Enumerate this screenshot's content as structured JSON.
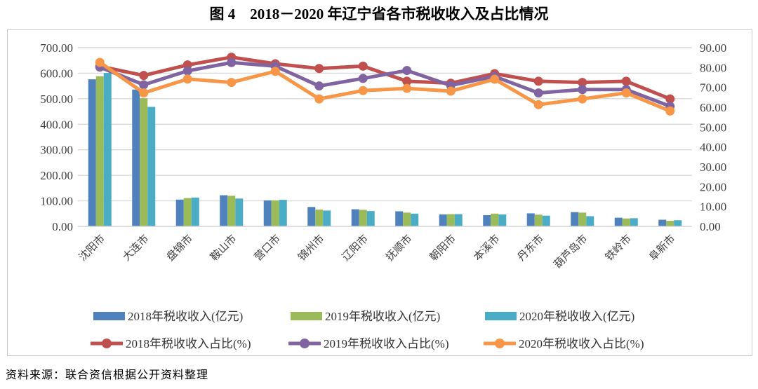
{
  "title": "图 4　2018－2020 年辽宁省各市税收收入及占比情况",
  "source_note": "资料来源：联合资信根据公开资料整理",
  "palette": {
    "bar_2018": "#4F81BD",
    "bar_2019": "#9BBB59",
    "bar_2020": "#4BACC6",
    "line_2018": "#C0504D",
    "line_2019": "#8064A2",
    "line_2020": "#F79646",
    "gridline": "#D9D9D9",
    "axis_text": "#404040",
    "border": "#C9C9C9"
  },
  "chart_data": {
    "type": "bar+line",
    "categories": [
      "沈阳市",
      "大连市",
      "盘锦市",
      "鞍山市",
      "营口市",
      "锦州市",
      "辽阳市",
      "抚顺市",
      "朝阳市",
      "本溪市",
      "丹东市",
      "葫芦岛市",
      "铁岭市",
      "阜新市"
    ],
    "bar_series": [
      {
        "name": "2018年税收收入(亿元)",
        "color": "#4F81BD",
        "values": [
          576,
          536,
          105,
          122,
          102,
          76,
          67,
          59,
          47,
          44,
          51,
          56,
          34,
          26
        ]
      },
      {
        "name": "2019年税收收入(亿元)",
        "color": "#9BBB59",
        "values": [
          588,
          502,
          111,
          120,
          102,
          66,
          65,
          54,
          48,
          50,
          46,
          54,
          31,
          22
        ]
      },
      {
        "name": "2020年税收收入(亿元)",
        "color": "#4BACC6",
        "values": [
          601,
          468,
          113,
          109,
          104,
          62,
          60,
          50,
          48,
          47,
          42,
          40,
          32,
          24
        ]
      }
    ],
    "line_series": [
      {
        "name": "2018年税收收入占比(%)",
        "color": "#C0504D",
        "values": [
          80.6,
          76.0,
          81.3,
          85.2,
          81.9,
          79.5,
          80.7,
          73.1,
          72.1,
          76.9,
          73.1,
          72.5,
          73.1,
          64.2
        ]
      },
      {
        "name": "2019年税收收入占比(%)",
        "color": "#8064A2",
        "values": [
          80.2,
          71.3,
          78.3,
          82.5,
          80.7,
          70.7,
          74.5,
          78.5,
          71.0,
          75.5,
          67.2,
          68.9,
          68.9,
          60.5
        ]
      },
      {
        "name": "2020年税收收入占比(%)",
        "color": "#F79646",
        "values": [
          82.6,
          67.2,
          74.2,
          72.5,
          78.1,
          64.2,
          68.4,
          69.5,
          68.1,
          74.1,
          61.3,
          64.2,
          67.2,
          58.1
        ]
      }
    ],
    "left_axis": {
      "min": 0,
      "max": 700,
      "step": 100,
      "tick_labels": [
        "700.00",
        "600.00",
        "500.00",
        "400.00",
        "300.00",
        "200.00",
        "100.00",
        "0.00"
      ]
    },
    "right_axis": {
      "min": 0,
      "max": 90,
      "step": 10,
      "tick_labels": [
        "90.00",
        "80.00",
        "70.00",
        "60.00",
        "50.00",
        "40.00",
        "30.00",
        "20.00",
        "10.00",
        "0.00"
      ]
    },
    "legend_position": "bottom",
    "grid": true
  }
}
